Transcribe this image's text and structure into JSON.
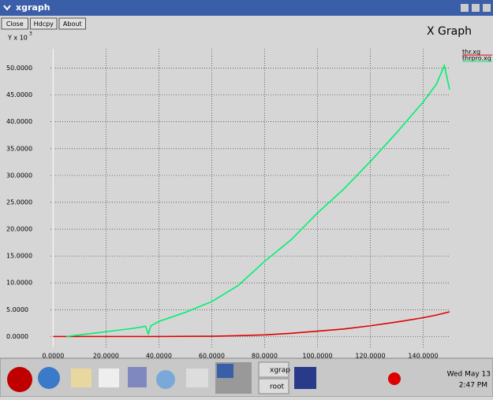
{
  "window": {
    "title": "xgraph",
    "buttons": [
      "Close",
      "Hdcpy",
      "About"
    ],
    "heading": "X Graph",
    "y_unit": "Y x 10",
    "y_unit_exponent": "3"
  },
  "taskbar": {
    "tasks": [
      "xgrap",
      "root"
    ],
    "date": "Wed May 13",
    "time": "2:47 PM"
  },
  "chart_data": {
    "type": "line",
    "xlim": [
      -1,
      150
    ],
    "ylim": [
      -2,
      53.6
    ],
    "xticks": [
      {
        "value": 0,
        "label": "0.0000"
      },
      {
        "value": 20,
        "label": "20.0000"
      },
      {
        "value": 40,
        "label": "40.0000"
      },
      {
        "value": 60,
        "label": "60.0000"
      },
      {
        "value": 80,
        "label": "80.0000"
      },
      {
        "value": 100,
        "label": "100.0000"
      },
      {
        "value": 120,
        "label": "120.0000"
      },
      {
        "value": 140,
        "label": "140.0000"
      }
    ],
    "yticks": [
      {
        "value": 0,
        "label": "0.0000"
      },
      {
        "value": 5,
        "label": "5.0000"
      },
      {
        "value": 10,
        "label": "10.0000"
      },
      {
        "value": 15,
        "label": "15.0000"
      },
      {
        "value": 20,
        "label": "20.0000"
      },
      {
        "value": 25,
        "label": "25.0000"
      },
      {
        "value": 30,
        "label": "30.0000"
      },
      {
        "value": 35,
        "label": "35.0000"
      },
      {
        "value": 40,
        "label": "40.0000"
      },
      {
        "value": 45,
        "label": "45.0000"
      },
      {
        "value": 50,
        "label": "50.0000"
      }
    ],
    "grid": true,
    "series": [
      {
        "name": "thr.xg",
        "color": "#e00000",
        "x": [
          0,
          20,
          40,
          60,
          70,
          80,
          90,
          100,
          110,
          120,
          130,
          140,
          145,
          150
        ],
        "values": [
          0,
          0,
          0,
          0.05,
          0.15,
          0.3,
          0.6,
          1,
          1.4,
          2,
          2.7,
          3.5,
          4,
          4.6
        ]
      },
      {
        "name": "thrpro.xg",
        "color": "#00f070",
        "x": [
          5,
          10,
          20,
          30,
          35,
          36,
          37,
          40,
          50,
          60,
          70,
          80,
          90,
          100,
          110,
          120,
          130,
          140,
          145,
          148,
          150
        ],
        "values": [
          0,
          0.3,
          0.9,
          1.5,
          1.9,
          0.5,
          2,
          2.8,
          4.5,
          6.5,
          9.5,
          14,
          18,
          23,
          27.5,
          32.6,
          38,
          43.7,
          47,
          50.5,
          46
        ]
      }
    ]
  }
}
